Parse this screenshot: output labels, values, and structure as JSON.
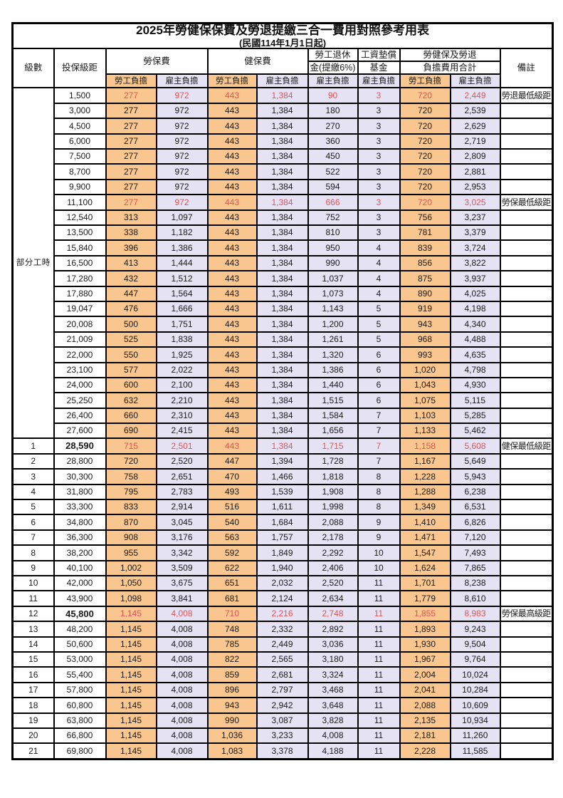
{
  "title": "2025年勞健保保費及勞退提繳三合一費用對照參考用表",
  "subtitle": "(民國114年1月1日起)",
  "header": {
    "level": "級數",
    "bracket": "投保級距",
    "labor_insurance": "勞保費",
    "health_insurance": "健保費",
    "pension_line1": "勞工退休",
    "pension_line2": "金(提繳6%)",
    "wage_fund_line1": "工資墊償",
    "wage_fund_line2": "基金",
    "total_line1": "勞健保及勞退",
    "total_line2": "負擔費用合計",
    "remark": "備註",
    "employee_burden": "勞工負擔",
    "employer_burden": "雇主負擔"
  },
  "part_time": {
    "label": "部分工時",
    "span": 23
  },
  "colors": {
    "employee_bg": "#F8C68E",
    "employer_bg": "#E5E2F4",
    "highlight_text": "#E15454",
    "border": "#000000"
  },
  "rows": [
    {
      "level": "",
      "bracket": "1,500",
      "li_emp": "277",
      "li_er": "972",
      "hi_emp": "443",
      "hi_er": "1,384",
      "pension": "90",
      "fund": "3",
      "tot_emp": "720",
      "tot_er": "2,449",
      "remark": "勞退最低級距",
      "red": true,
      "bold": false
    },
    {
      "level": "",
      "bracket": "3,000",
      "li_emp": "277",
      "li_er": "972",
      "hi_emp": "443",
      "hi_er": "1,384",
      "pension": "180",
      "fund": "3",
      "tot_emp": "720",
      "tot_er": "2,539",
      "remark": "",
      "red": false,
      "bold": false
    },
    {
      "level": "",
      "bracket": "4,500",
      "li_emp": "277",
      "li_er": "972",
      "hi_emp": "443",
      "hi_er": "1,384",
      "pension": "270",
      "fund": "3",
      "tot_emp": "720",
      "tot_er": "2,629",
      "remark": "",
      "red": false,
      "bold": false
    },
    {
      "level": "",
      "bracket": "6,000",
      "li_emp": "277",
      "li_er": "972",
      "hi_emp": "443",
      "hi_er": "1,384",
      "pension": "360",
      "fund": "3",
      "tot_emp": "720",
      "tot_er": "2,719",
      "remark": "",
      "red": false,
      "bold": false
    },
    {
      "level": "",
      "bracket": "7,500",
      "li_emp": "277",
      "li_er": "972",
      "hi_emp": "443",
      "hi_er": "1,384",
      "pension": "450",
      "fund": "3",
      "tot_emp": "720",
      "tot_er": "2,809",
      "remark": "",
      "red": false,
      "bold": false
    },
    {
      "level": "",
      "bracket": "8,700",
      "li_emp": "277",
      "li_er": "972",
      "hi_emp": "443",
      "hi_er": "1,384",
      "pension": "522",
      "fund": "3",
      "tot_emp": "720",
      "tot_er": "2,881",
      "remark": "",
      "red": false,
      "bold": false
    },
    {
      "level": "",
      "bracket": "9,900",
      "li_emp": "277",
      "li_er": "972",
      "hi_emp": "443",
      "hi_er": "1,384",
      "pension": "594",
      "fund": "3",
      "tot_emp": "720",
      "tot_er": "2,953",
      "remark": "",
      "red": false,
      "bold": false
    },
    {
      "level": "",
      "bracket": "11,100",
      "li_emp": "277",
      "li_er": "972",
      "hi_emp": "443",
      "hi_er": "1,384",
      "pension": "666",
      "fund": "3",
      "tot_emp": "720",
      "tot_er": "3,025",
      "remark": "勞保最低級距",
      "red": true,
      "bold": false
    },
    {
      "level": "",
      "bracket": "12,540",
      "li_emp": "313",
      "li_er": "1,097",
      "hi_emp": "443",
      "hi_er": "1,384",
      "pension": "752",
      "fund": "3",
      "tot_emp": "756",
      "tot_er": "3,237",
      "remark": "",
      "red": false,
      "bold": false
    },
    {
      "level": "",
      "bracket": "13,500",
      "li_emp": "338",
      "li_er": "1,182",
      "hi_emp": "443",
      "hi_er": "1,384",
      "pension": "810",
      "fund": "3",
      "tot_emp": "781",
      "tot_er": "3,379",
      "remark": "",
      "red": false,
      "bold": false
    },
    {
      "level": "",
      "bracket": "15,840",
      "li_emp": "396",
      "li_er": "1,386",
      "hi_emp": "443",
      "hi_er": "1,384",
      "pension": "950",
      "fund": "4",
      "tot_emp": "839",
      "tot_er": "3,724",
      "remark": "",
      "red": false,
      "bold": false
    },
    {
      "level": "",
      "bracket": "16,500",
      "li_emp": "413",
      "li_er": "1,444",
      "hi_emp": "443",
      "hi_er": "1,384",
      "pension": "990",
      "fund": "4",
      "tot_emp": "856",
      "tot_er": "3,822",
      "remark": "",
      "red": false,
      "bold": false
    },
    {
      "level": "",
      "bracket": "17,280",
      "li_emp": "432",
      "li_er": "1,512",
      "hi_emp": "443",
      "hi_er": "1,384",
      "pension": "1,037",
      "fund": "4",
      "tot_emp": "875",
      "tot_er": "3,937",
      "remark": "",
      "red": false,
      "bold": false
    },
    {
      "level": "",
      "bracket": "17,880",
      "li_emp": "447",
      "li_er": "1,564",
      "hi_emp": "443",
      "hi_er": "1,384",
      "pension": "1,073",
      "fund": "4",
      "tot_emp": "890",
      "tot_er": "4,025",
      "remark": "",
      "red": false,
      "bold": false
    },
    {
      "level": "",
      "bracket": "19,047",
      "li_emp": "476",
      "li_er": "1,666",
      "hi_emp": "443",
      "hi_er": "1,384",
      "pension": "1,143",
      "fund": "5",
      "tot_emp": "919",
      "tot_er": "4,198",
      "remark": "",
      "red": false,
      "bold": false
    },
    {
      "level": "",
      "bracket": "20,008",
      "li_emp": "500",
      "li_er": "1,751",
      "hi_emp": "443",
      "hi_er": "1,384",
      "pension": "1,200",
      "fund": "5",
      "tot_emp": "943",
      "tot_er": "4,340",
      "remark": "",
      "red": false,
      "bold": false
    },
    {
      "level": "",
      "bracket": "21,009",
      "li_emp": "525",
      "li_er": "1,838",
      "hi_emp": "443",
      "hi_er": "1,384",
      "pension": "1,261",
      "fund": "5",
      "tot_emp": "968",
      "tot_er": "4,488",
      "remark": "",
      "red": false,
      "bold": false
    },
    {
      "level": "",
      "bracket": "22,000",
      "li_emp": "550",
      "li_er": "1,925",
      "hi_emp": "443",
      "hi_er": "1,384",
      "pension": "1,320",
      "fund": "6",
      "tot_emp": "993",
      "tot_er": "4,635",
      "remark": "",
      "red": false,
      "bold": false
    },
    {
      "level": "",
      "bracket": "23,100",
      "li_emp": "577",
      "li_er": "2,022",
      "hi_emp": "443",
      "hi_er": "1,384",
      "pension": "1,386",
      "fund": "6",
      "tot_emp": "1,020",
      "tot_er": "4,798",
      "remark": "",
      "red": false,
      "bold": false
    },
    {
      "level": "",
      "bracket": "24,000",
      "li_emp": "600",
      "li_er": "2,100",
      "hi_emp": "443",
      "hi_er": "1,384",
      "pension": "1,440",
      "fund": "6",
      "tot_emp": "1,043",
      "tot_er": "4,930",
      "remark": "",
      "red": false,
      "bold": false
    },
    {
      "level": "",
      "bracket": "25,250",
      "li_emp": "632",
      "li_er": "2,210",
      "hi_emp": "443",
      "hi_er": "1,384",
      "pension": "1,515",
      "fund": "6",
      "tot_emp": "1,075",
      "tot_er": "5,115",
      "remark": "",
      "red": false,
      "bold": false
    },
    {
      "level": "",
      "bracket": "26,400",
      "li_emp": "660",
      "li_er": "2,310",
      "hi_emp": "443",
      "hi_er": "1,384",
      "pension": "1,584",
      "fund": "7",
      "tot_emp": "1,103",
      "tot_er": "5,285",
      "remark": "",
      "red": false,
      "bold": false
    },
    {
      "level": "",
      "bracket": "27,600",
      "li_emp": "690",
      "li_er": "2,415",
      "hi_emp": "443",
      "hi_er": "1,384",
      "pension": "1,656",
      "fund": "7",
      "tot_emp": "1,133",
      "tot_er": "5,462",
      "remark": "",
      "red": false,
      "bold": false
    },
    {
      "level": "1",
      "bracket": "28,590",
      "li_emp": "715",
      "li_er": "2,501",
      "hi_emp": "443",
      "hi_er": "1,384",
      "pension": "1,715",
      "fund": "7",
      "tot_emp": "1,158",
      "tot_er": "5,608",
      "remark": "健保最低級距",
      "red": true,
      "bold": true
    },
    {
      "level": "2",
      "bracket": "28,800",
      "li_emp": "720",
      "li_er": "2,520",
      "hi_emp": "447",
      "hi_er": "1,394",
      "pension": "1,728",
      "fund": "7",
      "tot_emp": "1,167",
      "tot_er": "5,649",
      "remark": "",
      "red": false,
      "bold": false
    },
    {
      "level": "3",
      "bracket": "30,300",
      "li_emp": "758",
      "li_er": "2,651",
      "hi_emp": "470",
      "hi_er": "1,466",
      "pension": "1,818",
      "fund": "8",
      "tot_emp": "1,228",
      "tot_er": "5,943",
      "remark": "",
      "red": false,
      "bold": false
    },
    {
      "level": "4",
      "bracket": "31,800",
      "li_emp": "795",
      "li_er": "2,783",
      "hi_emp": "493",
      "hi_er": "1,539",
      "pension": "1,908",
      "fund": "8",
      "tot_emp": "1,288",
      "tot_er": "6,238",
      "remark": "",
      "red": false,
      "bold": false
    },
    {
      "level": "5",
      "bracket": "33,300",
      "li_emp": "833",
      "li_er": "2,914",
      "hi_emp": "516",
      "hi_er": "1,611",
      "pension": "1,998",
      "fund": "8",
      "tot_emp": "1,349",
      "tot_er": "6,531",
      "remark": "",
      "red": false,
      "bold": false
    },
    {
      "level": "6",
      "bracket": "34,800",
      "li_emp": "870",
      "li_er": "3,045",
      "hi_emp": "540",
      "hi_er": "1,684",
      "pension": "2,088",
      "fund": "9",
      "tot_emp": "1,410",
      "tot_er": "6,826",
      "remark": "",
      "red": false,
      "bold": false
    },
    {
      "level": "7",
      "bracket": "36,300",
      "li_emp": "908",
      "li_er": "3,176",
      "hi_emp": "563",
      "hi_er": "1,757",
      "pension": "2,178",
      "fund": "9",
      "tot_emp": "1,471",
      "tot_er": "7,120",
      "remark": "",
      "red": false,
      "bold": false
    },
    {
      "level": "8",
      "bracket": "38,200",
      "li_emp": "955",
      "li_er": "3,342",
      "hi_emp": "592",
      "hi_er": "1,849",
      "pension": "2,292",
      "fund": "10",
      "tot_emp": "1,547",
      "tot_er": "7,493",
      "remark": "",
      "red": false,
      "bold": false
    },
    {
      "level": "9",
      "bracket": "40,100",
      "li_emp": "1,002",
      "li_er": "3,509",
      "hi_emp": "622",
      "hi_er": "1,940",
      "pension": "2,406",
      "fund": "10",
      "tot_emp": "1,624",
      "tot_er": "7,865",
      "remark": "",
      "red": false,
      "bold": false
    },
    {
      "level": "10",
      "bracket": "42,000",
      "li_emp": "1,050",
      "li_er": "3,675",
      "hi_emp": "651",
      "hi_er": "2,032",
      "pension": "2,520",
      "fund": "11",
      "tot_emp": "1,701",
      "tot_er": "8,238",
      "remark": "",
      "red": false,
      "bold": false
    },
    {
      "level": "11",
      "bracket": "43,900",
      "li_emp": "1,098",
      "li_er": "3,841",
      "hi_emp": "681",
      "hi_er": "2,124",
      "pension": "2,634",
      "fund": "11",
      "tot_emp": "1,779",
      "tot_er": "8,610",
      "remark": "",
      "red": false,
      "bold": false
    },
    {
      "level": "12",
      "bracket": "45,800",
      "li_emp": "1,145",
      "li_er": "4,008",
      "hi_emp": "710",
      "hi_er": "2,216",
      "pension": "2,748",
      "fund": "11",
      "tot_emp": "1,855",
      "tot_er": "8,983",
      "remark": "勞保最高級距",
      "red": true,
      "bold": true
    },
    {
      "level": "13",
      "bracket": "48,200",
      "li_emp": "1,145",
      "li_er": "4,008",
      "hi_emp": "748",
      "hi_er": "2,332",
      "pension": "2,892",
      "fund": "11",
      "tot_emp": "1,893",
      "tot_er": "9,243",
      "remark": "",
      "red": false,
      "bold": false
    },
    {
      "level": "14",
      "bracket": "50,600",
      "li_emp": "1,145",
      "li_er": "4,008",
      "hi_emp": "785",
      "hi_er": "2,449",
      "pension": "3,036",
      "fund": "11",
      "tot_emp": "1,930",
      "tot_er": "9,504",
      "remark": "",
      "red": false,
      "bold": false
    },
    {
      "level": "15",
      "bracket": "53,000",
      "li_emp": "1,145",
      "li_er": "4,008",
      "hi_emp": "822",
      "hi_er": "2,565",
      "pension": "3,180",
      "fund": "11",
      "tot_emp": "1,967",
      "tot_er": "9,764",
      "remark": "",
      "red": false,
      "bold": false
    },
    {
      "level": "16",
      "bracket": "55,400",
      "li_emp": "1,145",
      "li_er": "4,008",
      "hi_emp": "859",
      "hi_er": "2,681",
      "pension": "3,324",
      "fund": "11",
      "tot_emp": "2,004",
      "tot_er": "10,024",
      "remark": "",
      "red": false,
      "bold": false
    },
    {
      "level": "17",
      "bracket": "57,800",
      "li_emp": "1,145",
      "li_er": "4,008",
      "hi_emp": "896",
      "hi_er": "2,797",
      "pension": "3,468",
      "fund": "11",
      "tot_emp": "2,041",
      "tot_er": "10,284",
      "remark": "",
      "red": false,
      "bold": false
    },
    {
      "level": "18",
      "bracket": "60,800",
      "li_emp": "1,145",
      "li_er": "4,008",
      "hi_emp": "943",
      "hi_er": "2,942",
      "pension": "3,648",
      "fund": "11",
      "tot_emp": "2,088",
      "tot_er": "10,609",
      "remark": "",
      "red": false,
      "bold": false
    },
    {
      "level": "19",
      "bracket": "63,800",
      "li_emp": "1,145",
      "li_er": "4,008",
      "hi_emp": "990",
      "hi_er": "3,087",
      "pension": "3,828",
      "fund": "11",
      "tot_emp": "2,135",
      "tot_er": "10,934",
      "remark": "",
      "red": false,
      "bold": false
    },
    {
      "level": "20",
      "bracket": "66,800",
      "li_emp": "1,145",
      "li_er": "4,008",
      "hi_emp": "1,036",
      "hi_er": "3,233",
      "pension": "4,008",
      "fund": "11",
      "tot_emp": "2,181",
      "tot_er": "11,260",
      "remark": "",
      "red": false,
      "bold": false
    },
    {
      "level": "21",
      "bracket": "69,800",
      "li_emp": "1,145",
      "li_er": "4,008",
      "hi_emp": "1,083",
      "hi_er": "3,378",
      "pension": "4,188",
      "fund": "11",
      "tot_emp": "2,228",
      "tot_er": "11,585",
      "remark": "",
      "red": false,
      "bold": false
    }
  ]
}
